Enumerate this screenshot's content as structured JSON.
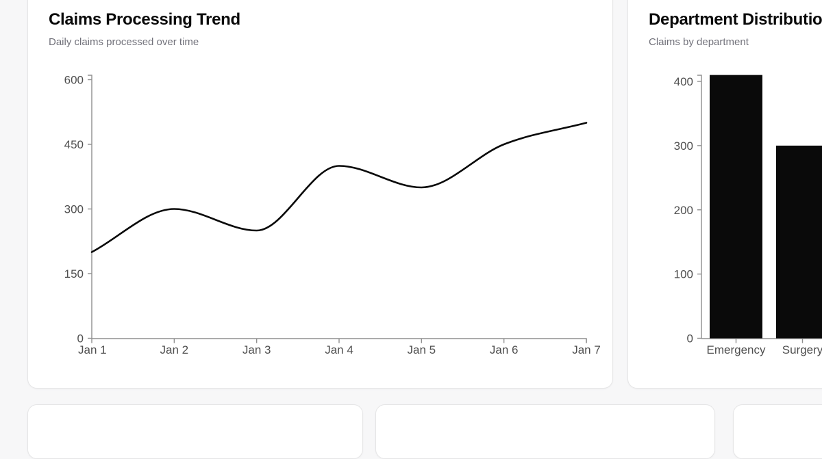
{
  "page": {
    "background": "#f7f7f8",
    "card_border": "#e5e5e6",
    "axis_color": "#8f8f8f",
    "tick_label_color": "#4f4f4f",
    "series_color": "#0a0a0a"
  },
  "cards": {
    "line_card": {
      "title": "Claims Processing Trend",
      "subtitle": "Daily claims processed over time"
    },
    "bar_card": {
      "title": "Department Distribution",
      "subtitle": "Claims by department"
    }
  },
  "chart_data": [
    {
      "type": "line",
      "title": "Claims Processing Trend",
      "subtitle": "Daily claims processed over time",
      "x": [
        "Jan 1",
        "Jan 2",
        "Jan 3",
        "Jan 4",
        "Jan 5",
        "Jan 6",
        "Jan 7"
      ],
      "values": [
        200,
        300,
        250,
        400,
        350,
        450,
        500
      ],
      "xlabel": "",
      "ylabel": "",
      "ylim": [
        0,
        600
      ],
      "yticks": [
        0,
        150,
        300,
        450,
        600
      ],
      "curve": "monotone",
      "grid": false,
      "legend": false,
      "line_color": "#0a0a0a"
    },
    {
      "type": "bar",
      "title": "Department Distribution",
      "subtitle": "Claims by department",
      "categories": [
        "Emergency",
        "Surgery"
      ],
      "values": [
        410,
        300
      ],
      "xlabel": "",
      "ylabel": "",
      "ylim": [
        0,
        410
      ],
      "yticks": [
        0,
        100,
        200,
        300,
        400
      ],
      "grid": false,
      "legend": false,
      "bar_color": "#0a0a0a"
    }
  ]
}
